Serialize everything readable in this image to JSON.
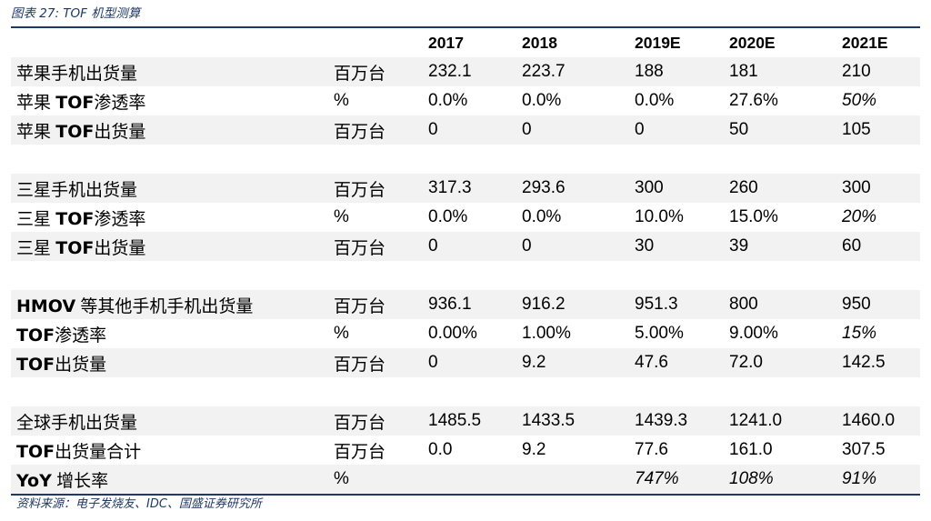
{
  "caption": "图表 27: TOF 机型测算",
  "source": "资料来源：电子发烧友、IDC、国盛证券研究所",
  "columns": [
    "",
    "",
    "2017",
    "2018",
    "2019E",
    "2020E",
    "2021E"
  ],
  "rows": [
    {
      "type": "data",
      "shade": true,
      "label": "苹果手机出货量",
      "unit": "百万台",
      "values": [
        "232.1",
        "223.7",
        "188",
        "181",
        "210"
      ],
      "italic": [
        false,
        false,
        false,
        false,
        false
      ]
    },
    {
      "type": "data",
      "shade": false,
      "label": "苹果 TOF渗透率",
      "unit": "%",
      "values": [
        "0.0%",
        "0.0%",
        "0.0%",
        "27.6%",
        "50%"
      ],
      "italic": [
        false,
        false,
        false,
        false,
        true
      ]
    },
    {
      "type": "data",
      "shade": true,
      "label": "苹果 TOF出货量",
      "unit": "百万台",
      "values": [
        "0",
        "0",
        "0",
        "50",
        "105"
      ],
      "italic": [
        false,
        false,
        false,
        false,
        false
      ]
    },
    {
      "type": "spacer"
    },
    {
      "type": "data",
      "shade": true,
      "label": "三星手机出货量",
      "unit": "百万台",
      "values": [
        "317.3",
        "293.6",
        "300",
        "260",
        "300"
      ],
      "italic": [
        false,
        false,
        false,
        false,
        false
      ]
    },
    {
      "type": "data",
      "shade": false,
      "label": "三星 TOF渗透率",
      "unit": "%",
      "values": [
        "0.0%",
        "0.0%",
        "10.0%",
        "15.0%",
        "20%"
      ],
      "italic": [
        false,
        false,
        false,
        false,
        true
      ]
    },
    {
      "type": "data",
      "shade": true,
      "label": "三星 TOF出货量",
      "unit": "百万台",
      "values": [
        "0",
        "0",
        "30",
        "39",
        "60"
      ],
      "italic": [
        false,
        false,
        false,
        false,
        false
      ]
    },
    {
      "type": "spacer"
    },
    {
      "type": "data",
      "shade": true,
      "label": "HMOV 等其他手机手机出货量",
      "unit": "百万台",
      "values": [
        "936.1",
        "916.2",
        "951.3",
        "800",
        "950"
      ],
      "italic": [
        false,
        false,
        false,
        false,
        false
      ]
    },
    {
      "type": "data",
      "shade": false,
      "label": "TOF渗透率",
      "unit": "%",
      "values": [
        "0.00%",
        "1.00%",
        "5.00%",
        "9.00%",
        "15%"
      ],
      "italic": [
        false,
        false,
        false,
        false,
        true
      ]
    },
    {
      "type": "data",
      "shade": true,
      "label": "TOF出货量",
      "unit": "百万台",
      "values": [
        "0",
        "9.2",
        "47.6",
        "72.0",
        "142.5"
      ],
      "italic": [
        false,
        false,
        false,
        false,
        false
      ]
    },
    {
      "type": "spacer"
    },
    {
      "type": "data",
      "shade": true,
      "label": "全球手机出货量",
      "unit": "百万台",
      "values": [
        "1485.5",
        "1433.5",
        "1439.3",
        "1241.0",
        "1460.0"
      ],
      "italic": [
        false,
        false,
        false,
        false,
        false
      ]
    },
    {
      "type": "data",
      "shade": false,
      "label": "TOF出货量合计",
      "unit": "百万台",
      "values": [
        "0.0",
        "9.2",
        "77.6",
        "161.0",
        "307.5"
      ],
      "italic": [
        false,
        false,
        false,
        false,
        false
      ]
    },
    {
      "type": "data",
      "shade": true,
      "label": "YoY 增长率",
      "unit": "%",
      "values": [
        "",
        "",
        "747%",
        "108%",
        "91%"
      ],
      "italic": [
        false,
        false,
        true,
        true,
        true
      ]
    }
  ]
}
